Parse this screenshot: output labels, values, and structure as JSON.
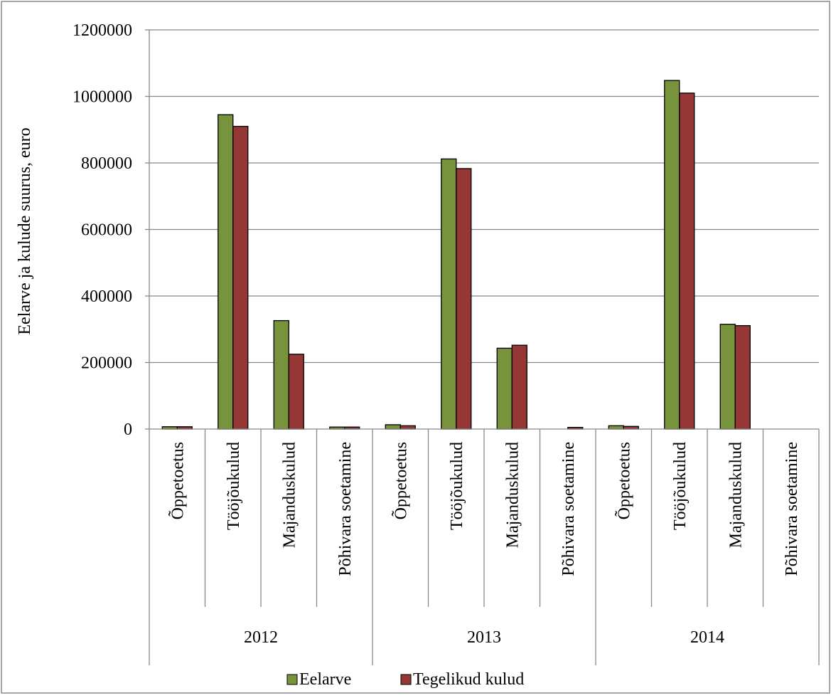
{
  "chart_data": {
    "type": "bar",
    "ylabel": "Eelarve ja kulude suurus, euro",
    "ylim": [
      0,
      1200000
    ],
    "yticks": [
      0,
      200000,
      400000,
      600000,
      800000,
      1000000,
      1200000
    ],
    "grid": true,
    "legend_position": "bottom",
    "groups": [
      {
        "label": "2012",
        "categories": [
          "Õppetoetus",
          "Tööjõukulud",
          "Majanduskulud",
          "Põhivara soetamine"
        ]
      },
      {
        "label": "2013",
        "categories": [
          "Õppetoetus",
          "Tööjõukulud",
          "Majanduskulud",
          "Põhivara soetamine"
        ]
      },
      {
        "label": "2014",
        "categories": [
          "Õppetoetus",
          "Tööjõukulud",
          "Majanduskulud",
          "Põhivara soetamine"
        ]
      }
    ],
    "series": [
      {
        "name": "Eelarve",
        "color": "#77933C",
        "values": [
          7000,
          945000,
          326000,
          6000,
          13000,
          812000,
          243000,
          0,
          10000,
          1048000,
          315000,
          0
        ]
      },
      {
        "name": "Tegelikud kulud",
        "color": "#953735",
        "values": [
          7000,
          910000,
          225000,
          6000,
          10000,
          783000,
          252000,
          5000,
          8000,
          1010000,
          311000,
          0
        ]
      }
    ]
  }
}
